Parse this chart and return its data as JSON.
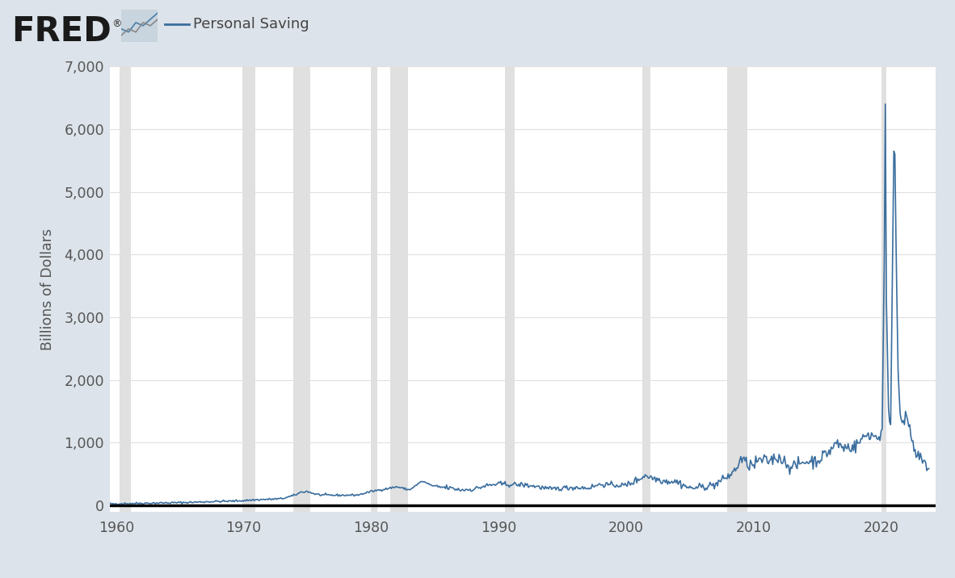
{
  "title": "Personal Saving",
  "ylabel": "Billions of Dollars",
  "line_color": "#3b6e9e",
  "line_width": 1.2,
  "bg_color": "#dce3ea",
  "plot_bg_color": "#ffffff",
  "recession_color": "#e0e0e0",
  "grid_color": "#e0e0e0",
  "ylim": [
    -100,
    7000
  ],
  "yticks": [
    0,
    1000,
    2000,
    3000,
    4000,
    5000,
    6000,
    7000
  ],
  "xlim_start": 1959.5,
  "xlim_end": 2024.3,
  "xtick_years": [
    1960,
    1970,
    1980,
    1990,
    2000,
    2010,
    2020
  ],
  "recession_bands": [
    [
      1960.25,
      1961.17
    ],
    [
      1969.92,
      1970.92
    ],
    [
      1973.92,
      1975.25
    ],
    [
      1980.0,
      1980.5
    ],
    [
      1981.5,
      1982.92
    ],
    [
      1990.5,
      1991.25
    ],
    [
      2001.25,
      2001.92
    ],
    [
      2007.92,
      2009.5
    ],
    [
      2020.0,
      2020.42
    ]
  ],
  "fred_text_color": "#1a1a1a",
  "legend_line_color": "#3b6e9e",
  "axis_label_color": "#555555",
  "tick_color": "#555555",
  "bottom_line_color": "#000000"
}
